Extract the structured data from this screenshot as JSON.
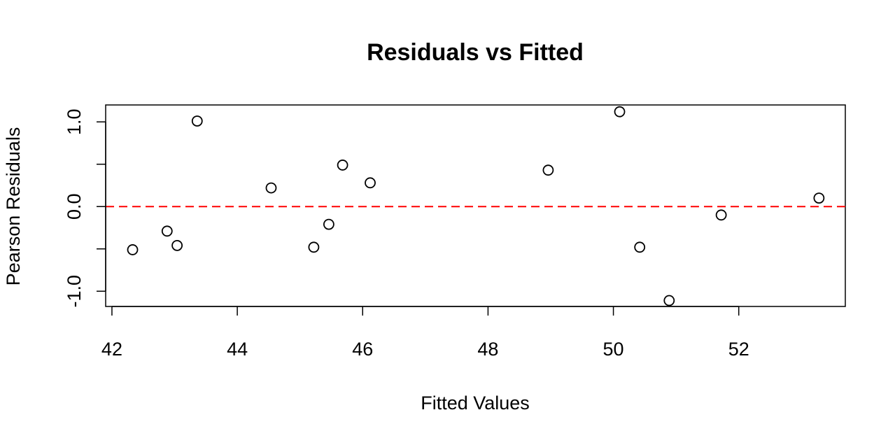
{
  "chart_data": {
    "type": "scatter",
    "title": "Residuals vs Fitted",
    "xlabel": "Fitted Values",
    "ylabel": "Pearson Residuals",
    "xlim": [
      41.9,
      53.7
    ],
    "ylim": [
      -1.18,
      1.2
    ],
    "x_ticks": [
      42,
      44,
      46,
      48,
      50,
      52
    ],
    "x_tick_labels": [
      "42",
      "44",
      "46",
      "48",
      "50",
      "52"
    ],
    "y_ticks": [
      -1.0,
      -0.5,
      0.0,
      0.5,
      1.0
    ],
    "y_tick_labels": [
      "-1.0",
      "",
      "0.0",
      "",
      "1.0"
    ],
    "grid": false,
    "reference_line": {
      "y": 0.0,
      "style": "dashed",
      "color": "#ff0000"
    },
    "marker_color": "#000000",
    "points": [
      {
        "x": 42.33,
        "y": -0.51
      },
      {
        "x": 42.88,
        "y": -0.29
      },
      {
        "x": 43.04,
        "y": -0.46
      },
      {
        "x": 43.36,
        "y": 1.01
      },
      {
        "x": 44.54,
        "y": 0.22
      },
      {
        "x": 45.22,
        "y": -0.48
      },
      {
        "x": 45.46,
        "y": -0.21
      },
      {
        "x": 45.68,
        "y": 0.49
      },
      {
        "x": 46.12,
        "y": 0.28
      },
      {
        "x": 48.96,
        "y": 0.43
      },
      {
        "x": 50.1,
        "y": 1.12
      },
      {
        "x": 50.42,
        "y": -0.48
      },
      {
        "x": 50.89,
        "y": -1.11
      },
      {
        "x": 51.72,
        "y": -0.1
      },
      {
        "x": 53.28,
        "y": 0.1
      }
    ]
  }
}
